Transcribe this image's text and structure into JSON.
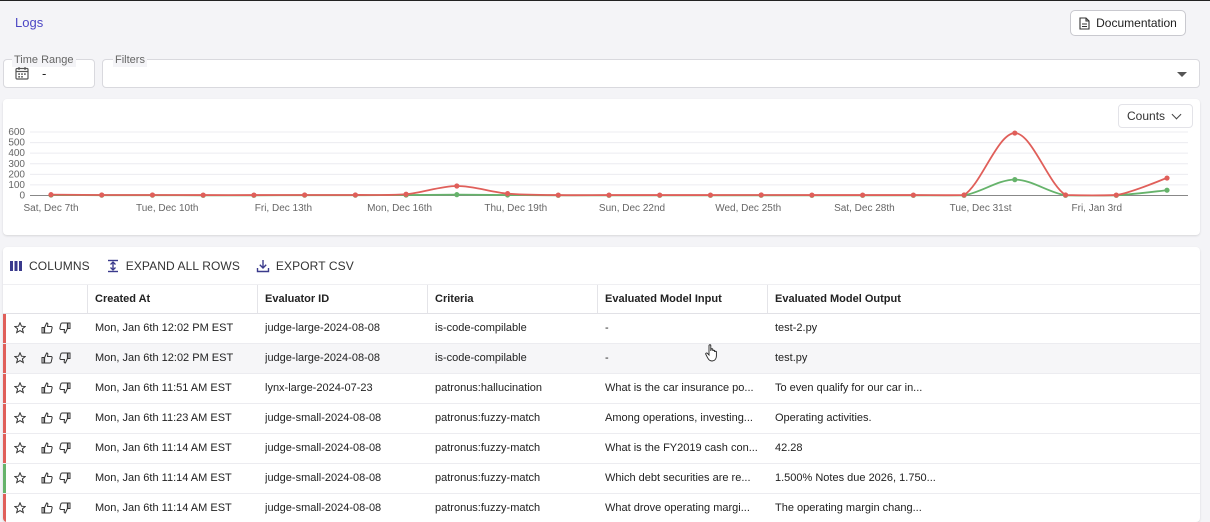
{
  "page": {
    "title": "Logs"
  },
  "header": {
    "documentation_label": "Documentation"
  },
  "filters": {
    "time_range_label": "Time Range",
    "time_range_value": "-",
    "filters_label": "Filters",
    "filters_value": ""
  },
  "chart_controls": {
    "metric_select": "Counts"
  },
  "chart_data": {
    "type": "line",
    "y_tick_labels": [
      "0",
      "100",
      "200",
      "300",
      "400",
      "500",
      "600"
    ],
    "ylim": [
      0,
      600
    ],
    "x_tick_labels": [
      "Sat, Dec 7th",
      "Tue, Dec 10th",
      "Fri, Dec 13th",
      "Mon, Dec 16th",
      "Thu, Dec 19th",
      "Sun, Dec 22nd",
      "Wed, Dec 25th",
      "Sat, Dec 28th",
      "Tue, Dec 31st",
      "Fri, Jan 3rd"
    ],
    "grid": true,
    "series": [
      {
        "color": "#e05f5a",
        "values": [
          8,
          5,
          5,
          4,
          4,
          5,
          5,
          12,
          90,
          18,
          4,
          4,
          4,
          4,
          5,
          4,
          4,
          4,
          5,
          590,
          5,
          4,
          165
        ]
      },
      {
        "color": "#66b36b",
        "values": [
          4,
          3,
          3,
          2,
          2,
          3,
          3,
          4,
          8,
          5,
          2,
          2,
          2,
          2,
          2,
          2,
          2,
          2,
          2,
          150,
          2,
          2,
          50
        ]
      }
    ]
  },
  "toolbar": {
    "columns_label": "COLUMNS",
    "expand_label": "EXPAND ALL ROWS",
    "export_label": "EXPORT CSV"
  },
  "table": {
    "headers": [
      "Created At",
      "Evaluator ID",
      "Criteria",
      "Evaluated Model Input",
      "Evaluated Model Output"
    ],
    "rows": [
      {
        "status": "fail",
        "created_at": "Mon, Jan 6th 12:02 PM EST",
        "evaluator_id": "judge-large-2024-08-08",
        "criteria": "is-code-compilable",
        "input": "-",
        "output": "test-2.py"
      },
      {
        "status": "fail",
        "created_at": "Mon, Jan 6th 12:02 PM EST",
        "evaluator_id": "judge-large-2024-08-08",
        "criteria": "is-code-compilable",
        "input": "-",
        "output": "test.py"
      },
      {
        "status": "fail",
        "created_at": "Mon, Jan 6th 11:51 AM EST",
        "evaluator_id": "lynx-large-2024-07-23",
        "criteria": "patronus:hallucination",
        "input": "What is the car insurance po...",
        "output": "To even qualify for our car in..."
      },
      {
        "status": "fail",
        "created_at": "Mon, Jan 6th 11:23 AM EST",
        "evaluator_id": "judge-small-2024-08-08",
        "criteria": "patronus:fuzzy-match",
        "input": "Among operations, investing...",
        "output": "Operating activities."
      },
      {
        "status": "fail",
        "created_at": "Mon, Jan 6th 11:14 AM EST",
        "evaluator_id": "judge-small-2024-08-08",
        "criteria": "patronus:fuzzy-match",
        "input": "What is the FY2019 cash con...",
        "output": "42.28"
      },
      {
        "status": "pass",
        "created_at": "Mon, Jan 6th 11:14 AM EST",
        "evaluator_id": "judge-small-2024-08-08",
        "criteria": "patronus:fuzzy-match",
        "input": "Which debt securities are re...",
        "output": "1.500% Notes due 2026, 1.750..."
      },
      {
        "status": "fail",
        "created_at": "Mon, Jan 6th 11:14 AM EST",
        "evaluator_id": "judge-small-2024-08-08",
        "criteria": "patronus:fuzzy-match",
        "input": "What drove operating margi...",
        "output": "The operating margin chang..."
      }
    ]
  },
  "colors": {
    "accent": "#4b46c4",
    "fail": "#e05f5a",
    "pass": "#66b36b"
  }
}
